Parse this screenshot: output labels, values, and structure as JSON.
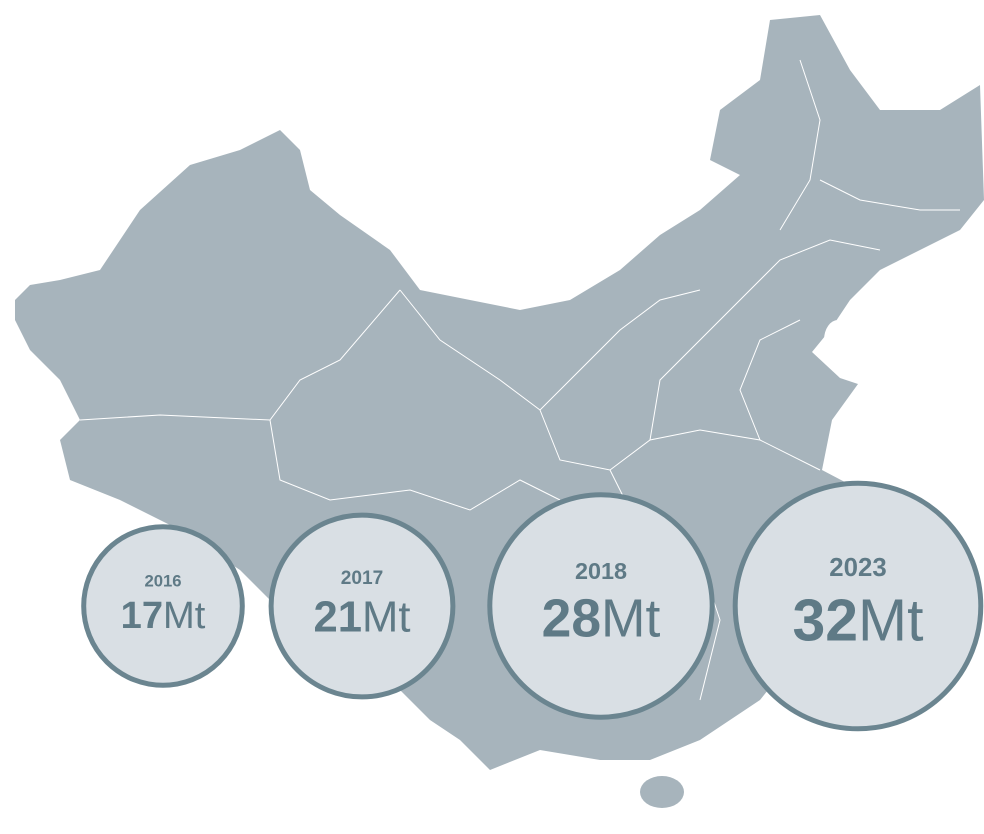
{
  "chart_data": {
    "type": "bubble",
    "categories": [
      "2016",
      "2017",
      "2018",
      "2023"
    ],
    "values": [
      17,
      21,
      28,
      32
    ],
    "unit": "Mt",
    "color": "#d9dfe4",
    "edge_color": "#6b8590"
  }
}
